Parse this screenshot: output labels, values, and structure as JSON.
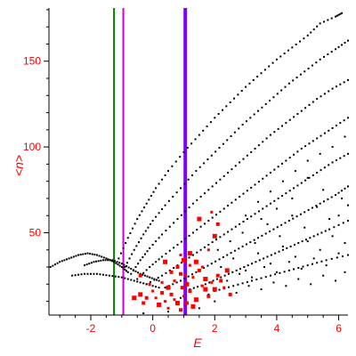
{
  "chart_data": {
    "type": "scatter",
    "title": "",
    "xlabel": "E",
    "ylabel": "<n>",
    "xlim": [
      -3.35,
      6.3
    ],
    "ylim": [
      2,
      181
    ],
    "x_ticks": [
      -2,
      0,
      2,
      4,
      6
    ],
    "y_ticks": [
      50,
      100,
      150
    ],
    "x_tick_labels": [
      "-2",
      "0",
      "2",
      "4",
      "6"
    ],
    "y_tick_labels": [
      "50",
      "100",
      "150"
    ],
    "grid": false,
    "legend": "none",
    "axis_color": "#000000",
    "text_color": "#ff0000",
    "reference_lines": [
      {
        "x": -1.25,
        "color": "#008000",
        "width": "thin"
      },
      {
        "x": -0.95,
        "color": "#cc00cc",
        "width": "thin"
      },
      {
        "x": 1.05,
        "color": "#8000ff",
        "width": "thick"
      }
    ],
    "series": [
      {
        "color": "#000000",
        "marker": "small-dot",
        "curves": [
          {
            "points": [
              [
                -3.3,
                30
              ],
              [
                -3.0,
                33
              ],
              [
                -2.7,
                35
              ],
              [
                -2.4,
                37
              ],
              [
                -2.1,
                38
              ],
              [
                -1.8,
                37
              ],
              [
                -1.5,
                35
              ],
              [
                -1.25,
                33
              ],
              [
                -1.0,
                30
              ],
              [
                -0.8,
                27
              ]
            ]
          },
          {
            "points": [
              [
                -2.2,
                31
              ],
              [
                -1.9,
                33
              ],
              [
                -1.6,
                34
              ],
              [
                -1.3,
                34
              ],
              [
                -1.0,
                32
              ],
              [
                -0.7,
                29
              ],
              [
                -0.4,
                26
              ],
              [
                -0.1,
                24
              ],
              [
                0.2,
                22
              ]
            ]
          },
          {
            "points": [
              [
                -2.6,
                25
              ],
              [
                -2.2,
                26
              ],
              [
                -1.8,
                26
              ],
              [
                -1.4,
                25
              ],
              [
                -1.0,
                24
              ],
              [
                -0.6,
                22
              ],
              [
                -0.2,
                20
              ],
              [
                0.2,
                18
              ]
            ]
          },
          {
            "points": [
              [
                -1.1,
                35
              ],
              [
                -0.8,
                47
              ],
              [
                -0.5,
                58
              ],
              [
                -0.2,
                67
              ],
              [
                0.1,
                76
              ],
              [
                0.5,
                86
              ],
              [
                1.0,
                97
              ],
              [
                1.5,
                107
              ],
              [
                2.0,
                117
              ],
              [
                2.5,
                126
              ],
              [
                3.0,
                135
              ],
              [
                3.5,
                143
              ],
              [
                4.0,
                151
              ],
              [
                4.5,
                158
              ],
              [
                5.0,
                165
              ],
              [
                5.4,
                172
              ],
              [
                5.9,
                176
              ],
              [
                6.1,
                178
              ]
            ]
          },
          {
            "points": [
              [
                -0.9,
                30
              ],
              [
                -0.6,
                40
              ],
              [
                -0.3,
                49
              ],
              [
                0.0,
                57
              ],
              [
                0.4,
                66
              ],
              [
                0.9,
                76
              ],
              [
                1.4,
                86
              ],
              [
                1.9,
                95
              ],
              [
                2.4,
                104
              ],
              [
                2.9,
                113
              ],
              [
                3.4,
                121
              ],
              [
                3.9,
                129
              ],
              [
                4.4,
                137
              ],
              [
                4.9,
                144
              ],
              [
                5.4,
                151
              ],
              [
                5.9,
                157
              ],
              [
                6.3,
                162
              ]
            ]
          },
          {
            "points": [
              [
                -0.7,
                26
              ],
              [
                -0.4,
                34
              ],
              [
                -0.1,
                41
              ],
              [
                0.3,
                49
              ],
              [
                0.8,
                58
              ],
              [
                1.3,
                67
              ],
              [
                1.8,
                75
              ],
              [
                2.3,
                83
              ],
              [
                2.8,
                91
              ],
              [
                3.3,
                99
              ],
              [
                3.8,
                107
              ],
              [
                4.3,
                114
              ],
              [
                4.8,
                121
              ],
              [
                5.3,
                128
              ],
              [
                5.8,
                134
              ],
              [
                6.3,
                139
              ]
            ]
          },
          {
            "points": [
              [
                -0.5,
                23
              ],
              [
                -0.1,
                30
              ],
              [
                0.3,
                36
              ],
              [
                0.8,
                43
              ],
              [
                1.3,
                50
              ],
              [
                1.8,
                57
              ],
              [
                2.3,
                64
              ],
              [
                2.8,
                71
              ],
              [
                3.3,
                78
              ],
              [
                3.8,
                85
              ],
              [
                4.3,
                92
              ],
              [
                4.8,
                99
              ],
              [
                5.3,
                105
              ],
              [
                5.8,
                111
              ],
              [
                6.3,
                117
              ]
            ]
          },
          {
            "points": [
              [
                -0.2,
                20
              ],
              [
                0.3,
                25
              ],
              [
                0.8,
                31
              ],
              [
                1.3,
                37
              ],
              [
                1.8,
                43
              ],
              [
                2.3,
                49
              ],
              [
                2.8,
                55
              ],
              [
                3.3,
                61
              ],
              [
                3.8,
                67
              ],
              [
                4.3,
                73
              ],
              [
                4.8,
                79
              ],
              [
                5.3,
                85
              ],
              [
                5.8,
                91
              ],
              [
                6.3,
                96
              ]
            ]
          },
          {
            "points": [
              [
                0.4,
                18
              ],
              [
                0.9,
                22
              ],
              [
                1.4,
                27
              ],
              [
                1.9,
                32
              ],
              [
                2.4,
                37
              ],
              [
                2.9,
                42
              ],
              [
                3.4,
                47
              ],
              [
                3.9,
                52
              ],
              [
                4.4,
                57
              ],
              [
                4.9,
                62
              ],
              [
                5.4,
                67
              ],
              [
                5.9,
                72
              ],
              [
                6.3,
                77
              ]
            ]
          },
          {
            "points": [
              [
                1.2,
                17
              ],
              [
                1.7,
                20
              ],
              [
                2.2,
                24
              ],
              [
                2.7,
                28
              ],
              [
                3.2,
                32
              ],
              [
                3.7,
                36
              ],
              [
                4.2,
                40
              ],
              [
                4.7,
                44
              ],
              [
                5.2,
                48
              ],
              [
                5.7,
                52
              ],
              [
                6.3,
                57
              ]
            ]
          },
          {
            "points": [
              [
                2.0,
                16
              ],
              [
                2.6,
                19
              ],
              [
                3.2,
                22
              ],
              [
                3.8,
                25
              ],
              [
                4.4,
                28
              ],
              [
                5.0,
                31
              ],
              [
                5.6,
                34
              ],
              [
                6.3,
                37
              ]
            ]
          }
        ],
        "scatter_points": [
          [
            2.2,
            30
          ],
          [
            2.6,
            35
          ],
          [
            3.0,
            28
          ],
          [
            3.4,
            38
          ],
          [
            3.8,
            32
          ],
          [
            4.2,
            42
          ],
          [
            4.6,
            36
          ],
          [
            5.0,
            45
          ],
          [
            5.4,
            40
          ],
          [
            5.8,
            48
          ],
          [
            6.2,
            44
          ],
          [
            2.4,
            22
          ],
          [
            2.8,
            26
          ],
          [
            3.2,
            24
          ],
          [
            3.6,
            30
          ],
          [
            4.0,
            27
          ],
          [
            4.4,
            33
          ],
          [
            4.8,
            29
          ],
          [
            5.2,
            35
          ],
          [
            5.6,
            31
          ],
          [
            6.0,
            38
          ],
          [
            2.1,
            40
          ],
          [
            2.5,
            45
          ],
          [
            2.9,
            50
          ],
          [
            3.3,
            44
          ],
          [
            3.7,
            55
          ],
          [
            4.1,
            48
          ],
          [
            4.5,
            60
          ],
          [
            4.9,
            53
          ],
          [
            5.3,
            65
          ],
          [
            5.7,
            58
          ],
          [
            6.1,
            70
          ],
          [
            2.3,
            18
          ],
          [
            2.7,
            15
          ],
          [
            3.1,
            19
          ],
          [
            3.5,
            17
          ],
          [
            3.9,
            21
          ],
          [
            4.3,
            19
          ],
          [
            4.7,
            23
          ],
          [
            5.1,
            20
          ],
          [
            5.5,
            25
          ],
          [
            5.9,
            22
          ],
          [
            6.2,
            27
          ],
          [
            3.0,
            60
          ],
          [
            3.4,
            68
          ],
          [
            3.8,
            74
          ],
          [
            4.2,
            80
          ],
          [
            4.6,
            86
          ],
          [
            5.0,
            92
          ],
          [
            5.4,
            96
          ],
          [
            5.8,
            100
          ],
          [
            6.2,
            106
          ],
          [
            0.5,
            4
          ],
          [
            -0.3,
            3
          ],
          [
            1.5,
            6
          ],
          [
            2.0,
            10
          ],
          [
            0.9,
            12
          ],
          [
            1.8,
            14
          ],
          [
            6.0,
            60
          ],
          [
            6.3,
            66
          ],
          [
            5.5,
            75
          ],
          [
            5.0,
            82
          ],
          [
            4.5,
            70
          ],
          [
            4.0,
            64
          ],
          [
            3.5,
            58
          ]
        ]
      },
      {
        "color": "#ff0000",
        "marker": "filled-square",
        "points": [
          [
            0.1,
            12
          ],
          [
            0.3,
            15
          ],
          [
            0.5,
            18
          ],
          [
            0.7,
            22
          ],
          [
            0.9,
            26
          ],
          [
            1.1,
            20
          ],
          [
            1.3,
            24
          ],
          [
            1.5,
            28
          ],
          [
            1.7,
            17
          ],
          [
            1.9,
            21
          ],
          [
            2.1,
            25
          ],
          [
            0.2,
            8
          ],
          [
            0.4,
            10
          ],
          [
            0.6,
            14
          ],
          [
            0.8,
            9
          ],
          [
            1.0,
            13
          ],
          [
            1.2,
            16
          ],
          [
            1.4,
            11
          ],
          [
            1.6,
            19
          ],
          [
            1.8,
            13
          ],
          [
            2.0,
            17
          ],
          [
            0.0,
            16
          ],
          [
            -0.2,
            12
          ],
          [
            -0.4,
            14
          ],
          [
            -0.1,
            20
          ],
          [
            0.8,
            30
          ],
          [
            1.0,
            34
          ],
          [
            1.2,
            31
          ],
          [
            0.6,
            27
          ],
          [
            1.4,
            33
          ],
          [
            1.6,
            30
          ],
          [
            2.2,
            22
          ],
          [
            2.4,
            28
          ],
          [
            0.5,
            6
          ],
          [
            0.9,
            5
          ],
          [
            1.3,
            7
          ],
          [
            0.7,
            11
          ],
          [
            1.1,
            9
          ],
          [
            1.7,
            23
          ],
          [
            0.3,
            21
          ],
          [
            -0.3,
            9
          ],
          [
            -0.6,
            12
          ],
          [
            1.05,
            25
          ],
          [
            0.95,
            18
          ],
          [
            1.5,
            58
          ],
          [
            1.9,
            62
          ],
          [
            2.1,
            55
          ],
          [
            2.0,
            48
          ],
          [
            1.8,
            40
          ],
          [
            -0.4,
            25
          ],
          [
            0.4,
            33
          ],
          [
            2.3,
            18
          ],
          [
            2.5,
            14
          ],
          [
            1.2,
            38
          ],
          [
            0.9,
            37
          ]
        ]
      }
    ]
  }
}
